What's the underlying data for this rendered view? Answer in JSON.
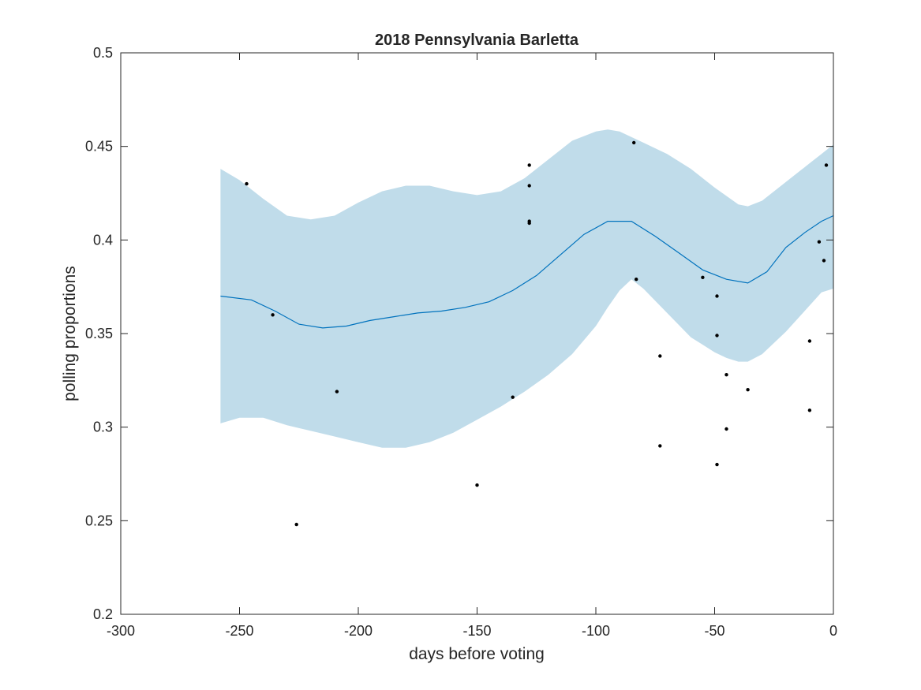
{
  "chart_data": {
    "type": "scatter",
    "title": "2018 Pennsylvania Barletta",
    "xlabel": "days before voting",
    "ylabel": "polling proportions",
    "xlim": [
      -300,
      0
    ],
    "ylim": [
      0.2,
      0.5
    ],
    "xticks": [
      -300,
      -250,
      -200,
      -150,
      -100,
      -50,
      0
    ],
    "yticks": [
      0.2,
      0.25,
      0.3,
      0.35,
      0.4,
      0.45,
      0.5
    ],
    "xtick_labels": [
      "-300",
      "-250",
      "-200",
      "-150",
      "-100",
      "-50",
      "0"
    ],
    "ytick_labels": [
      "0.2",
      "0.25",
      "0.3",
      "0.35",
      "0.4",
      "0.45",
      "0.5"
    ],
    "grid": false,
    "colors": {
      "band": "#c0dcea",
      "trend": "#0072bd",
      "points": "#000000",
      "axes": "#262626"
    },
    "trend": {
      "x": [
        -258,
        -245,
        -235,
        -225,
        -215,
        -205,
        -195,
        -185,
        -175,
        -165,
        -155,
        -145,
        -135,
        -125,
        -115,
        -105,
        -95,
        -85,
        -75,
        -65,
        -55,
        -45,
        -36,
        -28,
        -20,
        -12,
        -5,
        0
      ],
      "y": [
        0.37,
        0.368,
        0.362,
        0.355,
        0.353,
        0.354,
        0.357,
        0.359,
        0.361,
        0.362,
        0.364,
        0.367,
        0.373,
        0.381,
        0.392,
        0.403,
        0.41,
        0.41,
        0.402,
        0.393,
        0.384,
        0.379,
        0.377,
        0.383,
        0.396,
        0.404,
        0.41,
        0.413
      ]
    },
    "band_upper": {
      "x": [
        -258,
        -250,
        -240,
        -230,
        -220,
        -210,
        -200,
        -190,
        -180,
        -170,
        -160,
        -150,
        -140,
        -130,
        -120,
        -110,
        -100,
        -95,
        -90,
        -80,
        -70,
        -60,
        -50,
        -40,
        -36,
        -30,
        -20,
        -10,
        -5,
        0
      ],
      "y": [
        0.438,
        0.432,
        0.422,
        0.413,
        0.411,
        0.413,
        0.42,
        0.426,
        0.429,
        0.429,
        0.426,
        0.424,
        0.426,
        0.433,
        0.443,
        0.453,
        0.458,
        0.459,
        0.458,
        0.452,
        0.446,
        0.438,
        0.428,
        0.419,
        0.418,
        0.421,
        0.431,
        0.441,
        0.446,
        0.451
      ]
    },
    "band_lower": {
      "x": [
        -258,
        -250,
        -240,
        -230,
        -220,
        -210,
        -200,
        -190,
        -180,
        -170,
        -160,
        -150,
        -140,
        -130,
        -120,
        -110,
        -100,
        -95,
        -90,
        -85,
        -80,
        -70,
        -60,
        -50,
        -45,
        -40,
        -36,
        -30,
        -20,
        -10,
        -5,
        0
      ],
      "y": [
        0.302,
        0.305,
        0.305,
        0.301,
        0.298,
        0.295,
        0.292,
        0.289,
        0.289,
        0.292,
        0.297,
        0.304,
        0.311,
        0.319,
        0.328,
        0.339,
        0.354,
        0.364,
        0.373,
        0.379,
        0.374,
        0.361,
        0.348,
        0.34,
        0.337,
        0.335,
        0.335,
        0.339,
        0.351,
        0.365,
        0.372,
        0.374
      ]
    },
    "points": {
      "x": [
        -247,
        -236,
        -226,
        -209,
        -150,
        -135,
        -128,
        -128,
        -128,
        -128,
        -84,
        -83,
        -73,
        -73,
        -55,
        -49,
        -49,
        -49,
        -45,
        -45,
        -36,
        -10,
        -10,
        -6,
        -4,
        -3
      ],
      "y": [
        0.43,
        0.36,
        0.248,
        0.319,
        0.269,
        0.316,
        0.44,
        0.429,
        0.41,
        0.409,
        0.452,
        0.379,
        0.338,
        0.29,
        0.38,
        0.37,
        0.349,
        0.28,
        0.328,
        0.299,
        0.32,
        0.346,
        0.309,
        0.399,
        0.389,
        0.44
      ]
    }
  }
}
